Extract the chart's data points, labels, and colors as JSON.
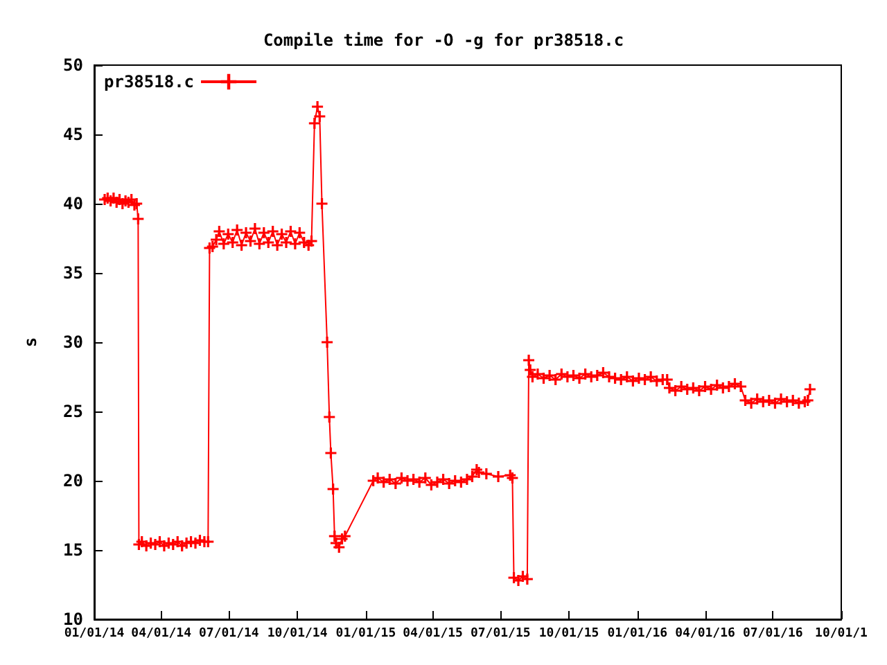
{
  "chart_data": {
    "type": "line",
    "title": "Compile time for -O -g for pr38518.c",
    "ylabel": "s",
    "xlim": [
      "2014-01-01",
      "2016-10-01"
    ],
    "xticks": [
      {
        "value": "2014-01-01",
        "label": "01/01/14"
      },
      {
        "value": "2014-04-01",
        "label": "04/01/14"
      },
      {
        "value": "2014-07-01",
        "label": "07/01/14"
      },
      {
        "value": "2014-10-01",
        "label": "10/01/14"
      },
      {
        "value": "2015-01-01",
        "label": "01/01/15"
      },
      {
        "value": "2015-04-01",
        "label": "04/01/15"
      },
      {
        "value": "2015-07-01",
        "label": "07/01/15"
      },
      {
        "value": "2015-10-01",
        "label": "10/01/15"
      },
      {
        "value": "2016-01-01",
        "label": "01/01/16"
      },
      {
        "value": "2016-04-01",
        "label": "04/01/16"
      },
      {
        "value": "2016-07-01",
        "label": "07/01/16"
      },
      {
        "value": "2016-10-01",
        "label": "10/01/1"
      }
    ],
    "ylim": [
      10,
      50
    ],
    "yticks": [
      10,
      15,
      20,
      25,
      30,
      35,
      40,
      45,
      50
    ],
    "grid": false,
    "legend": "top left",
    "marker": "cross",
    "line_style": "solid",
    "series": [
      {
        "name": "pr38518.c",
        "color": "#ff0000",
        "x": [
          "2014-01-15",
          "2014-01-19",
          "2014-01-23",
          "2014-01-27",
          "2014-01-31",
          "2014-02-04",
          "2014-02-08",
          "2014-02-12",
          "2014-02-16",
          "2014-02-20",
          "2014-02-24",
          "2014-02-27",
          "2014-03-01",
          "2014-03-02",
          "2014-03-06",
          "2014-03-12",
          "2014-03-18",
          "2014-03-24",
          "2014-03-30",
          "2014-04-05",
          "2014-04-11",
          "2014-04-17",
          "2014-04-23",
          "2014-04-29",
          "2014-05-05",
          "2014-05-11",
          "2014-05-17",
          "2014-05-23",
          "2014-05-29",
          "2014-06-03",
          "2014-06-05",
          "2014-06-09",
          "2014-06-14",
          "2014-06-18",
          "2014-06-24",
          "2014-06-30",
          "2014-07-06",
          "2014-07-12",
          "2014-07-18",
          "2014-07-24",
          "2014-07-30",
          "2014-08-05",
          "2014-08-11",
          "2014-08-17",
          "2014-08-23",
          "2014-08-29",
          "2014-09-04",
          "2014-09-10",
          "2014-09-16",
          "2014-09-22",
          "2014-09-28",
          "2014-10-04",
          "2014-10-10",
          "2014-10-16",
          "2014-10-20",
          "2014-10-24",
          "2014-10-28",
          "2014-10-31",
          "2014-11-03",
          "2014-11-10",
          "2014-11-13",
          "2014-11-15",
          "2014-11-18",
          "2014-11-20",
          "2014-11-22",
          "2014-11-26",
          "2014-11-30",
          "2014-12-04",
          "2015-01-11",
          "2015-01-17",
          "2015-01-25",
          "2015-02-02",
          "2015-02-10",
          "2015-02-18",
          "2015-02-26",
          "2015-03-06",
          "2015-03-14",
          "2015-03-22",
          "2015-03-30",
          "2015-04-07",
          "2015-04-15",
          "2015-04-23",
          "2015-05-01",
          "2015-05-09",
          "2015-05-17",
          "2015-05-24",
          "2015-05-30",
          "2015-06-02",
          "2015-06-12",
          "2015-06-28",
          "2015-07-14",
          "2015-07-17",
          "2015-07-19",
          "2015-07-25",
          "2015-07-31",
          "2015-08-06",
          "2015-08-08",
          "2015-08-10",
          "2015-08-13",
          "2015-08-20",
          "2015-08-28",
          "2015-09-05",
          "2015-09-13",
          "2015-09-21",
          "2015-09-29",
          "2015-10-07",
          "2015-10-15",
          "2015-10-23",
          "2015-10-31",
          "2015-11-08",
          "2015-11-16",
          "2015-11-24",
          "2015-12-02",
          "2015-12-10",
          "2015-12-18",
          "2015-12-26",
          "2016-01-03",
          "2016-01-11",
          "2016-01-19",
          "2016-01-27",
          "2016-02-04",
          "2016-02-10",
          "2016-02-13",
          "2016-02-21",
          "2016-02-29",
          "2016-03-08",
          "2016-03-16",
          "2016-03-24",
          "2016-04-01",
          "2016-04-09",
          "2016-04-17",
          "2016-04-25",
          "2016-05-03",
          "2016-05-11",
          "2016-05-19",
          "2016-05-25",
          "2016-06-02",
          "2016-06-10",
          "2016-06-18",
          "2016-06-26",
          "2016-07-04",
          "2016-07-12",
          "2016-07-20",
          "2016-07-28",
          "2016-08-05",
          "2016-08-13",
          "2016-08-17",
          "2016-08-20"
        ],
        "values": [
          40.3,
          40.4,
          40.2,
          40.4,
          40.1,
          40.3,
          40.0,
          40.2,
          40.1,
          40.3,
          39.9,
          40.0,
          38.9,
          15.4,
          15.6,
          15.3,
          15.5,
          15.4,
          15.6,
          15.3,
          15.5,
          15.4,
          15.6,
          15.3,
          15.5,
          15.6,
          15.5,
          15.7,
          15.6,
          15.6,
          36.8,
          36.9,
          37.4,
          38.0,
          37.1,
          37.8,
          37.2,
          38.1,
          37.0,
          37.9,
          37.3,
          38.2,
          37.1,
          37.9,
          37.2,
          38.0,
          37.0,
          37.8,
          37.2,
          38.0,
          37.1,
          37.9,
          37.2,
          37.0,
          37.3,
          45.8,
          47.0,
          46.3,
          40,
          30,
          24.6,
          22,
          19.4,
          16,
          15.5,
          15.2,
          15.8,
          16.0,
          20.0,
          20.2,
          19.9,
          20.1,
          19.8,
          20.2,
          20.0,
          20.1,
          19.9,
          20.2,
          19.7,
          19.9,
          20.1,
          19.8,
          20.0,
          19.9,
          20.1,
          20.3,
          20.8,
          20.6,
          20.5,
          20.3,
          20.4,
          20.2,
          13.0,
          12.8,
          13.1,
          12.9,
          28.7,
          28.0,
          27.5,
          27.7,
          27.4,
          27.6,
          27.3,
          27.7,
          27.5,
          27.6,
          27.4,
          27.7,
          27.5,
          27.6,
          27.8,
          27.5,
          27.4,
          27.3,
          27.5,
          27.2,
          27.4,
          27.3,
          27.5,
          27.2,
          27.3,
          27.3,
          26.7,
          26.5,
          26.8,
          26.6,
          26.7,
          26.5,
          26.8,
          26.6,
          26.9,
          26.7,
          26.8,
          27.0,
          26.8,
          25.8,
          25.6,
          25.9,
          25.7,
          25.8,
          25.6,
          25.9,
          25.7,
          25.8,
          25.6,
          25.7,
          25.8,
          26.6
        ]
      }
    ]
  }
}
